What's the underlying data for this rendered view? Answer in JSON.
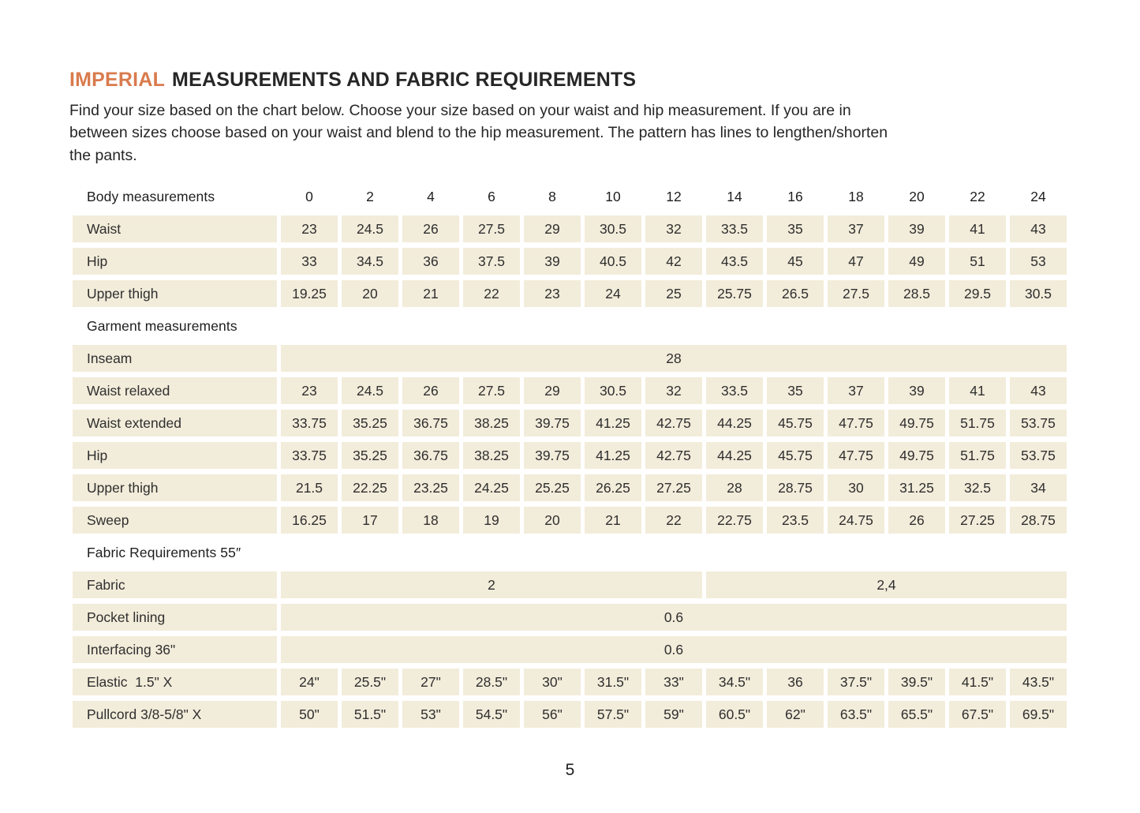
{
  "header": {
    "title_accent": "IMPERIAL",
    "title_rest": "MEASUREMENTS AND FABRIC REQUIREMENTS",
    "intro_lines": [
      "Find your size based on the chart below. Choose your size based on your waist and hip measurement. If you are in",
      "between sizes choose based on your waist and blend to the hip measurement. The pattern has lines to lengthen/shorten",
      "the pants."
    ]
  },
  "colors": {
    "accent_orange": "#d97b4e",
    "cell_beige": "#f2ecda",
    "text_dark": "#2c2c2c"
  },
  "footer": {
    "page_number": "5"
  },
  "table": {
    "header_row": {
      "label": "Body measurements",
      "sizes": [
        "0",
        "2",
        "4",
        "6",
        "8",
        "10",
        "12",
        "14",
        "16",
        "18",
        "20",
        "22",
        "24"
      ]
    },
    "sections": [
      {
        "id": "body-measurements",
        "heading": null,
        "rows": [
          {
            "label": "Waist",
            "cells": [
              "23",
              "24.5",
              "26",
              "27.5",
              "29",
              "30.5",
              "32",
              "33.5",
              "35",
              "37",
              "39",
              "41",
              "43"
            ]
          },
          {
            "label": "Hip",
            "cells": [
              "33",
              "34.5",
              "36",
              "37.5",
              "39",
              "40.5",
              "42",
              "43.5",
              "45",
              "47",
              "49",
              "51",
              "53"
            ]
          },
          {
            "label": "Upper thigh",
            "cells": [
              "19.25",
              "20",
              "21",
              "22",
              "23",
              "24",
              "25",
              "25.75",
              "26.5",
              "27.5",
              "28.5",
              "29.5",
              "30.5"
            ]
          }
        ]
      },
      {
        "id": "garment-measurements",
        "heading": "Garment measurements",
        "rows": [
          {
            "label": "Inseam",
            "cells": [
              {
                "t": "28",
                "s": 13
              }
            ]
          },
          {
            "label": "Waist relaxed",
            "cells": [
              "23",
              "24.5",
              "26",
              "27.5",
              "29",
              "30.5",
              "32",
              "33.5",
              "35",
              "37",
              "39",
              "41",
              "43"
            ]
          },
          {
            "label": "Waist extended",
            "cells": [
              "33.75",
              "35.25",
              "36.75",
              "38.25",
              "39.75",
              "41.25",
              "42.75",
              "44.25",
              "45.75",
              "47.75",
              "49.75",
              "51.75",
              "53.75"
            ]
          },
          {
            "label": "Hip",
            "cells": [
              "33.75",
              "35.25",
              "36.75",
              "38.25",
              "39.75",
              "41.25",
              "42.75",
              "44.25",
              "45.75",
              "47.75",
              "49.75",
              "51.75",
              "53.75"
            ]
          },
          {
            "label": "Upper thigh",
            "cells": [
              "21.5",
              "22.25",
              "23.25",
              "24.25",
              "25.25",
              "26.25",
              "27.25",
              "28",
              "28.75",
              "30",
              "31.25",
              "32.5",
              "34"
            ]
          },
          {
            "label": "Sweep",
            "cells": [
              "16.25",
              "17",
              "18",
              "19",
              "20",
              "21",
              "22",
              "22.75",
              "23.5",
              "24.75",
              "26",
              "27.25",
              "28.75"
            ]
          }
        ]
      },
      {
        "id": "fabric-requirements",
        "heading": "Fabric Requirements 55″",
        "rows": [
          {
            "label": "Fabric",
            "cells": [
              {
                "t": "2",
                "s": 7
              },
              {
                "t": "2,4",
                "s": 6
              }
            ]
          },
          {
            "label": "Pocket lining",
            "cells": [
              {
                "t": "0.6",
                "s": 13
              }
            ]
          },
          {
            "label": "Interfacing 36\"",
            "cells": [
              {
                "t": "0.6",
                "s": 13
              }
            ]
          },
          {
            "label": "Elastic  1.5\" X",
            "cells": [
              "24\"",
              "25.5\"",
              "27\"",
              "28.5\"",
              "30\"",
              "31.5\"",
              "33\"",
              "34.5\"",
              "36",
              "37.5\"",
              "39.5\"",
              "41.5\"",
              "43.5\""
            ]
          },
          {
            "label": "Pullcord 3/8-5/8\" X",
            "cells": [
              "50\"",
              "51.5\"",
              "53\"",
              "54.5\"",
              "56\"",
              "57.5\"",
              "59\"",
              "60.5\"",
              "62\"",
              "63.5\"",
              "65.5\"",
              "67.5\"",
              "69.5\""
            ]
          }
        ]
      }
    ]
  }
}
